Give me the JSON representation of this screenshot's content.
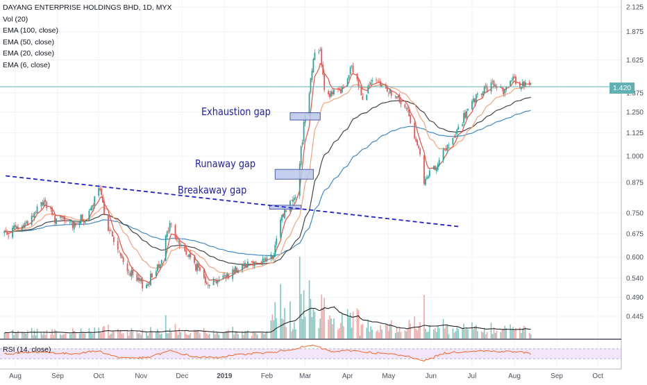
{
  "legend": {
    "title": "DAYANG ENTERPRISE HOLDINGS BHD, 1D, MYX",
    "vol": "Vol (20)",
    "ema100": "EMA (100, close)",
    "ema50": "EMA (50, close)",
    "ema20": "EMA (20, close)",
    "ema6": "EMA (6, close)"
  },
  "annotations": {
    "exhaustion": "Exhaustion gap",
    "runaway": "Runaway gap",
    "breakaway": "Breakaway gap"
  },
  "rsi_label": "RSI (14, close)",
  "last_price_label": "1.420",
  "colors": {
    "up": "#26a69a",
    "down": "#ef5350",
    "up_volume": "#7fc8c1",
    "down_volume": "#f5a5a3",
    "ema6": "#ef4c3c",
    "ema20": "#f4a37a",
    "ema50": "#444444",
    "ema100": "#3e89c7",
    "trendline": "#1f1fcc",
    "gap_box_fill": "#bac7ea",
    "gap_box_stroke": "#4a5bb0",
    "rsi_line": "#f26522",
    "rsi_band": "#f3e6fb",
    "price_line": "#5fb2b4"
  },
  "chart_data": {
    "type": "candlestick",
    "title": "DAYANG ENTERPRISE HOLDINGS BHD, 1D, MYX",
    "scale": "log",
    "y_ticks": [
      "2.125",
      "1.875",
      "1.625",
      "1.375",
      "1.250",
      "1.125",
      "1.000",
      "0.875",
      "0.750",
      "0.675",
      "0.600",
      "0.540",
      "0.490",
      "0.445"
    ],
    "x_ticks": [
      "Aug",
      "Sep",
      "Oct",
      "Nov",
      "Dec",
      "2019",
      "Feb",
      "Mar",
      "Apr",
      "May",
      "Jun",
      "Jul",
      "Aug",
      "Sep",
      "Oct"
    ],
    "last_price": 1.42,
    "path_points": [
      [
        "2018-07-25",
        0.68
      ],
      [
        "2018-08-06",
        0.7
      ],
      [
        "2018-08-14",
        0.74
      ],
      [
        "2018-08-22",
        0.8
      ],
      [
        "2018-08-29",
        0.73
      ],
      [
        "2018-09-12",
        0.71
      ],
      [
        "2018-09-24",
        0.74
      ],
      [
        "2018-10-01",
        0.85
      ],
      [
        "2018-10-08",
        0.7
      ],
      [
        "2018-10-19",
        0.58
      ],
      [
        "2018-10-29",
        0.53
      ],
      [
        "2018-11-05",
        0.52
      ],
      [
        "2018-11-15",
        0.59
      ],
      [
        "2018-11-22",
        0.71
      ],
      [
        "2018-11-29",
        0.64
      ],
      [
        "2018-12-10",
        0.58
      ],
      [
        "2018-12-20",
        0.53
      ],
      [
        "2018-12-31",
        0.54
      ],
      [
        "2019-01-14",
        0.58
      ],
      [
        "2019-01-28",
        0.59
      ],
      [
        "2019-02-06",
        0.6
      ],
      [
        "2019-02-11",
        0.73
      ],
      [
        "2019-02-18",
        0.79
      ],
      [
        "2019-02-22",
        0.83
      ],
      [
        "2019-02-26",
        1.03
      ],
      [
        "2019-03-01",
        1.25
      ],
      [
        "2019-03-04",
        1.4
      ],
      [
        "2019-03-07",
        1.65
      ],
      [
        "2019-03-12",
        1.72
      ],
      [
        "2019-03-15",
        1.42
      ],
      [
        "2019-03-20",
        1.36
      ],
      [
        "2019-03-28",
        1.4
      ],
      [
        "2019-04-04",
        1.56
      ],
      [
        "2019-04-12",
        1.36
      ],
      [
        "2019-04-19",
        1.45
      ],
      [
        "2019-04-29",
        1.41
      ],
      [
        "2019-05-06",
        1.35
      ],
      [
        "2019-05-15",
        1.25
      ],
      [
        "2019-05-22",
        1.07
      ],
      [
        "2019-05-27",
        0.87
      ],
      [
        "2019-06-03",
        0.94
      ],
      [
        "2019-06-10",
        1.02
      ],
      [
        "2019-06-17",
        1.08
      ],
      [
        "2019-06-24",
        1.2
      ],
      [
        "2019-07-01",
        1.3
      ],
      [
        "2019-07-10",
        1.4
      ],
      [
        "2019-07-17",
        1.43
      ],
      [
        "2019-07-24",
        1.4
      ],
      [
        "2019-07-31",
        1.46
      ],
      [
        "2019-08-06",
        1.44
      ],
      [
        "2019-08-12",
        1.42
      ]
    ],
    "gap_boxes": [
      {
        "label": "Breakaway gap",
        "from": "2019-02-03",
        "to": "2019-02-26",
        "low": 0.765,
        "high": 0.78
      },
      {
        "label": "Runaway gap",
        "from": "2019-02-07",
        "to": "2019-03-07",
        "low": 0.89,
        "high": 0.935
      },
      {
        "label": "Exhaustion gap",
        "from": "2019-02-18",
        "to": "2019-03-12",
        "low": 1.2,
        "high": 1.245
      }
    ],
    "trendline": {
      "from": [
        "2018-07-25",
        0.905
      ],
      "to": [
        "2019-06-22",
        0.7
      ]
    },
    "rsi": {
      "upper": 70,
      "lower": 30,
      "points": [
        [
          "2018-07-25",
          50
        ],
        [
          "2018-08-20",
          58
        ],
        [
          "2018-09-10",
          49
        ],
        [
          "2018-10-01",
          62
        ],
        [
          "2018-10-15",
          35
        ],
        [
          "2018-11-05",
          33
        ],
        [
          "2018-11-22",
          62
        ],
        [
          "2018-12-10",
          38
        ],
        [
          "2018-12-25",
          34
        ],
        [
          "2019-01-20",
          52
        ],
        [
          "2019-02-06",
          55
        ],
        [
          "2019-02-22",
          72
        ],
        [
          "2019-03-07",
          84
        ],
        [
          "2019-03-20",
          58
        ],
        [
          "2019-04-04",
          63
        ],
        [
          "2019-04-29",
          50
        ],
        [
          "2019-05-15",
          40
        ],
        [
          "2019-05-28",
          23
        ],
        [
          "2019-06-10",
          52
        ],
        [
          "2019-07-01",
          62
        ],
        [
          "2019-07-20",
          60
        ],
        [
          "2019-08-06",
          57
        ],
        [
          "2019-08-12",
          50
        ]
      ]
    }
  }
}
